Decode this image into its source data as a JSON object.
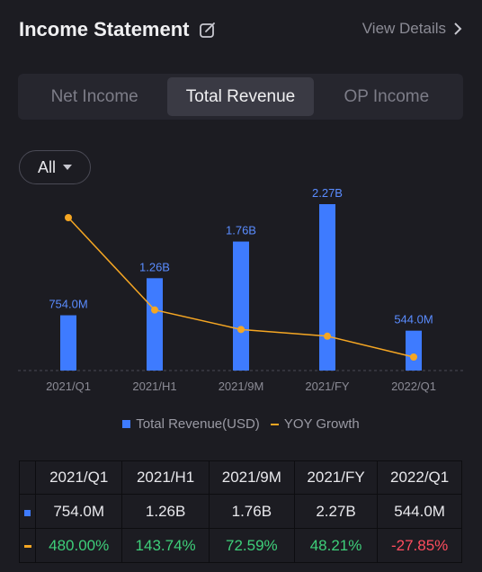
{
  "header": {
    "title": "Income Statement",
    "view_details": "View Details"
  },
  "tabs": [
    {
      "label": "Net Income",
      "active": false
    },
    {
      "label": "Total Revenue",
      "active": true
    },
    {
      "label": "OP Income",
      "active": false
    }
  ],
  "filter": {
    "selected": "All"
  },
  "legend": {
    "revenue": "Total Revenue(USD)",
    "growth": "YOY Growth"
  },
  "colors": {
    "bar": "#3e7bff",
    "line": "#f5a623",
    "positive": "#3ecf7a",
    "negative": "#ff4d5e"
  },
  "chart_data": {
    "type": "bar",
    "categories": [
      "2021/Q1",
      "2021/H1",
      "2021/9M",
      "2021/FY",
      "2022/Q1"
    ],
    "series": [
      {
        "name": "Total Revenue(USD)",
        "type": "bar",
        "values": [
          754000000,
          1260000000,
          1760000000,
          2270000000,
          544000000
        ],
        "labels": [
          "754.0M",
          "1.26B",
          "1.76B",
          "2.27B",
          "544.0M"
        ]
      },
      {
        "name": "YOY Growth",
        "type": "line",
        "values": [
          480.0,
          143.74,
          72.59,
          48.21,
          -27.85
        ]
      }
    ],
    "grid": false,
    "legend_position": "bottom"
  },
  "table": {
    "headers": [
      "2021/Q1",
      "2021/H1",
      "2021/9M",
      "2021/FY",
      "2022/Q1"
    ],
    "revenue_row": [
      "754.0M",
      "1.26B",
      "1.76B",
      "2.27B",
      "544.0M"
    ],
    "growth_row": [
      "480.00%",
      "143.74%",
      "72.59%",
      "48.21%",
      "-27.85%"
    ]
  }
}
